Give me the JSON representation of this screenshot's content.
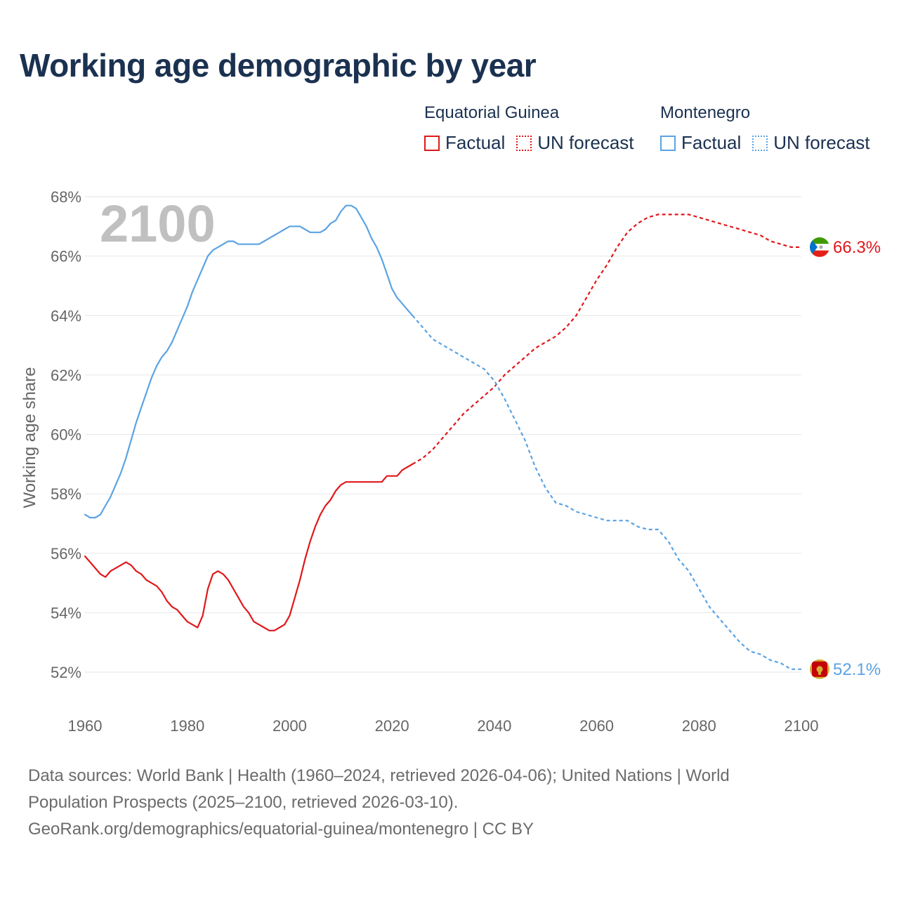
{
  "title": "Working age demographic by year",
  "legend": {
    "groups": [
      {
        "country": "Equatorial Guinea",
        "color": "#e0181b",
        "factual_label": "Factual",
        "forecast_label": "UN forecast"
      },
      {
        "country": "Montenegro",
        "color": "#5ba3e3",
        "factual_label": "Factual",
        "forecast_label": "UN forecast"
      }
    ]
  },
  "year_watermark": "2100",
  "footer": {
    "line1": "Data sources: World Bank | Health (1960–2024, retrieved 2026-04-06); United Nations | World",
    "line2": "Population Prospects (2025–2100, retrieved 2026-03-10).",
    "line3": "GeoRank.org/demographics/equatorial-guinea/montenegro | CC BY"
  },
  "chart_data": {
    "type": "line",
    "title": "Working age demographic by year",
    "xlabel": "",
    "ylabel": "Working age share",
    "xlim": [
      1960,
      2100
    ],
    "ylim": [
      51,
      68.5
    ],
    "xticks": [
      1960,
      1980,
      2000,
      2020,
      2040,
      2060,
      2080,
      2100
    ],
    "xtick_labels": [
      "1960",
      "1980",
      "2000",
      "2020",
      "2040",
      "2060",
      "2080",
      "2100"
    ],
    "yticks": [
      52,
      54,
      56,
      58,
      60,
      62,
      64,
      66,
      68
    ],
    "ytick_labels": [
      "52%",
      "54%",
      "56%",
      "58%",
      "60%",
      "62%",
      "64%",
      "66%",
      "68%"
    ],
    "grid": true,
    "factual_end_year": 2024,
    "series": [
      {
        "name": "Equatorial Guinea",
        "color": "#e0181b",
        "end_label": "66.3%",
        "flag": "equatorial-guinea-flag",
        "x": [
          1960,
          1961,
          1962,
          1963,
          1964,
          1965,
          1966,
          1967,
          1968,
          1969,
          1970,
          1971,
          1972,
          1973,
          1974,
          1975,
          1976,
          1977,
          1978,
          1979,
          1980,
          1981,
          1982,
          1983,
          1984,
          1985,
          1986,
          1987,
          1988,
          1989,
          1990,
          1991,
          1992,
          1993,
          1994,
          1995,
          1996,
          1997,
          1998,
          1999,
          2000,
          2001,
          2002,
          2003,
          2004,
          2005,
          2006,
          2007,
          2008,
          2009,
          2010,
          2011,
          2012,
          2013,
          2014,
          2015,
          2016,
          2017,
          2018,
          2019,
          2020,
          2021,
          2022,
          2023,
          2024,
          2026,
          2028,
          2030,
          2032,
          2034,
          2036,
          2038,
          2040,
          2042,
          2044,
          2046,
          2048,
          2050,
          2052,
          2054,
          2056,
          2058,
          2060,
          2062,
          2064,
          2066,
          2068,
          2070,
          2072,
          2074,
          2076,
          2078,
          2080,
          2082,
          2084,
          2086,
          2088,
          2090,
          2092,
          2094,
          2096,
          2098,
          2100
        ],
        "values": [
          55.9,
          55.7,
          55.5,
          55.3,
          55.2,
          55.4,
          55.5,
          55.6,
          55.7,
          55.6,
          55.4,
          55.3,
          55.1,
          55.0,
          54.9,
          54.7,
          54.4,
          54.2,
          54.1,
          53.9,
          53.7,
          53.6,
          53.5,
          53.9,
          54.8,
          55.3,
          55.4,
          55.3,
          55.1,
          54.8,
          54.5,
          54.2,
          54.0,
          53.7,
          53.6,
          53.5,
          53.4,
          53.4,
          53.5,
          53.6,
          53.9,
          54.5,
          55.1,
          55.8,
          56.4,
          56.9,
          57.3,
          57.6,
          57.8,
          58.1,
          58.3,
          58.4,
          58.4,
          58.4,
          58.4,
          58.4,
          58.4,
          58.4,
          58.4,
          58.6,
          58.6,
          58.6,
          58.8,
          58.9,
          59.0,
          59.2,
          59.5,
          59.9,
          60.3,
          60.7,
          61.0,
          61.3,
          61.6,
          62.0,
          62.3,
          62.6,
          62.9,
          63.1,
          63.3,
          63.6,
          64.0,
          64.6,
          65.2,
          65.7,
          66.3,
          66.8,
          67.1,
          67.3,
          67.4,
          67.4,
          67.4,
          67.4,
          67.3,
          67.2,
          67.1,
          67.0,
          66.9,
          66.8,
          66.7,
          66.5,
          66.4,
          66.3,
          66.3
        ]
      },
      {
        "name": "Montenegro",
        "color": "#5ba3e3",
        "end_label": "52.1%",
        "flag": "montenegro-flag",
        "x": [
          1960,
          1961,
          1962,
          1963,
          1964,
          1965,
          1966,
          1967,
          1968,
          1969,
          1970,
          1971,
          1972,
          1973,
          1974,
          1975,
          1976,
          1977,
          1978,
          1979,
          1980,
          1981,
          1982,
          1983,
          1984,
          1985,
          1986,
          1987,
          1988,
          1989,
          1990,
          1991,
          1992,
          1993,
          1994,
          1995,
          1996,
          1997,
          1998,
          1999,
          2000,
          2001,
          2002,
          2003,
          2004,
          2005,
          2006,
          2007,
          2008,
          2009,
          2010,
          2011,
          2012,
          2013,
          2014,
          2015,
          2016,
          2017,
          2018,
          2019,
          2020,
          2021,
          2022,
          2023,
          2024,
          2026,
          2028,
          2030,
          2032,
          2034,
          2036,
          2038,
          2040,
          2042,
          2044,
          2046,
          2048,
          2050,
          2052,
          2054,
          2056,
          2058,
          2060,
          2062,
          2064,
          2066,
          2068,
          2070,
          2072,
          2074,
          2076,
          2078,
          2080,
          2082,
          2084,
          2086,
          2088,
          2090,
          2092,
          2094,
          2096,
          2098,
          2100
        ],
        "values": [
          57.3,
          57.2,
          57.2,
          57.3,
          57.6,
          57.9,
          58.3,
          58.7,
          59.2,
          59.8,
          60.4,
          60.9,
          61.4,
          61.9,
          62.3,
          62.6,
          62.8,
          63.1,
          63.5,
          63.9,
          64.3,
          64.8,
          65.2,
          65.6,
          66.0,
          66.2,
          66.3,
          66.4,
          66.5,
          66.5,
          66.4,
          66.4,
          66.4,
          66.4,
          66.4,
          66.5,
          66.6,
          66.7,
          66.8,
          66.9,
          67.0,
          67.0,
          67.0,
          66.9,
          66.8,
          66.8,
          66.8,
          66.9,
          67.1,
          67.2,
          67.5,
          67.7,
          67.7,
          67.6,
          67.3,
          67.0,
          66.6,
          66.3,
          65.9,
          65.4,
          64.9,
          64.6,
          64.4,
          64.2,
          64.0,
          63.6,
          63.2,
          63.0,
          62.8,
          62.6,
          62.4,
          62.2,
          61.8,
          61.2,
          60.5,
          59.8,
          58.9,
          58.2,
          57.7,
          57.6,
          57.4,
          57.3,
          57.2,
          57.1,
          57.1,
          57.1,
          56.9,
          56.8,
          56.8,
          56.4,
          55.8,
          55.4,
          54.8,
          54.2,
          53.8,
          53.4,
          53.0,
          52.7,
          52.6,
          52.4,
          52.3,
          52.1,
          52.1
        ]
      }
    ]
  }
}
